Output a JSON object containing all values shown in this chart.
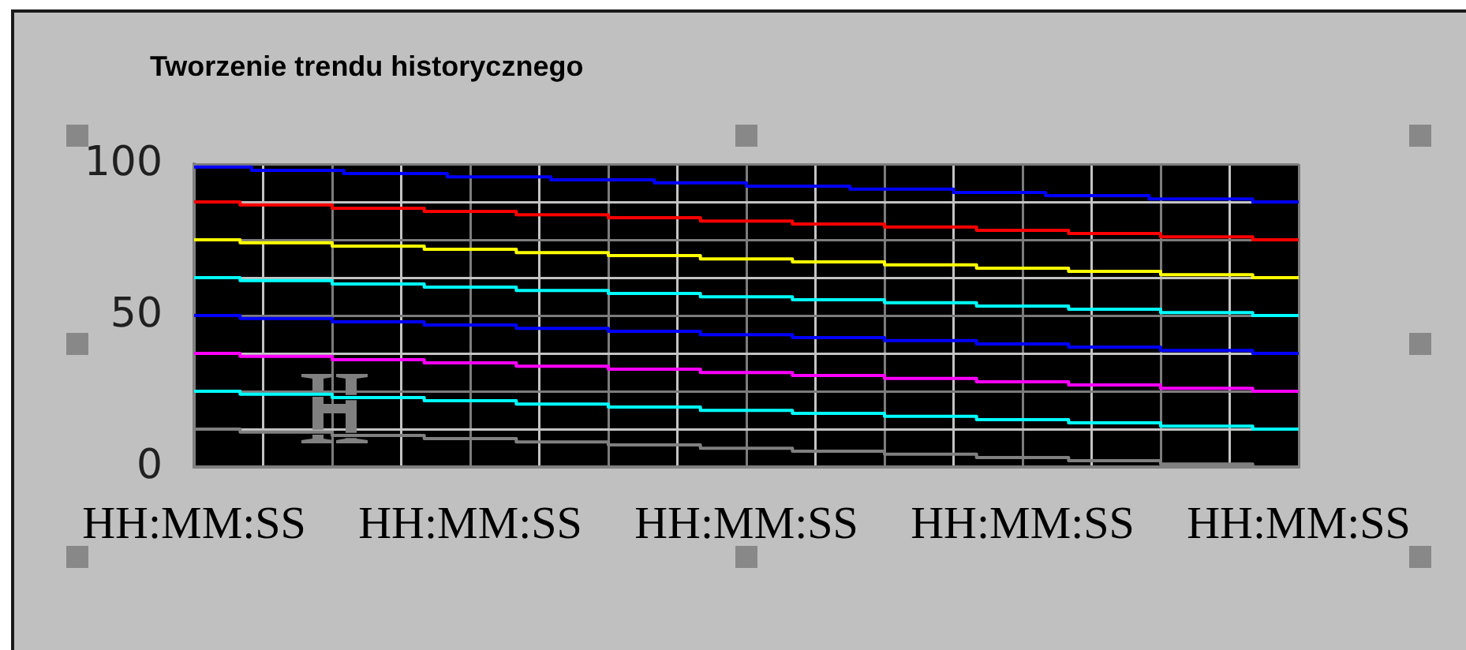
{
  "chart_data": {
    "type": "step",
    "title": "Tworzenie trendu historycznego",
    "categories": [
      "HH:MM:SS",
      null,
      null,
      null,
      null,
      null,
      null,
      null,
      null,
      null,
      null,
      null,
      null,
      null,
      null,
      null,
      null,
      null,
      null,
      null,
      null,
      null,
      null,
      null,
      "HH:MM:SS",
      null,
      null,
      null,
      null,
      null,
      null,
      null,
      null,
      null,
      null,
      null,
      null,
      null,
      null,
      null,
      null,
      null,
      null,
      null,
      null,
      null,
      null,
      null,
      "HH:MM:SS",
      null,
      null,
      null,
      null,
      null,
      null,
      null,
      null,
      null,
      null,
      null,
      null,
      null,
      null,
      null,
      null,
      null,
      null,
      null,
      null,
      null,
      null,
      null,
      "HH:MM:SS",
      null,
      null,
      null,
      null,
      null,
      null,
      null,
      null,
      null,
      null,
      null,
      null,
      null,
      null,
      null,
      null,
      null,
      null,
      null,
      null,
      null,
      null,
      null,
      "HH:MM:SS"
    ],
    "ylim": [
      0,
      100
    ],
    "yticks": [
      0,
      {
        "value": 12.5,
        "label": null
      },
      {
        "value": 25,
        "label": null
      },
      {
        "value": 37.5,
        "label": null
      },
      50,
      {
        "value": 62.5,
        "label": null
      },
      {
        "value": 75,
        "label": null
      },
      {
        "value": 87.5,
        "label": null
      },
      100
    ],
    "grid": true,
    "marker": "none",
    "line_style": "solid",
    "series": [
      {
        "color": "#0000ff",
        "values": [
          99,
          99,
          99,
          99,
          99,
          97.9,
          97.9,
          97.9,
          97.9,
          97.9,
          97.9,
          97.9,
          97.9,
          96.9,
          96.9,
          96.9,
          96.9,
          96.9,
          96.9,
          96.9,
          96.9,
          96.9,
          95.8,
          95.8,
          95.8,
          95.8,
          95.8,
          95.8,
          95.8,
          95.8,
          95.8,
          94.8,
          94.8,
          94.8,
          94.8,
          94.8,
          94.8,
          94.8,
          94.8,
          94.8,
          93.8,
          93.8,
          93.8,
          93.8,
          93.8,
          93.8,
          93.8,
          93.8,
          92.7,
          92.7,
          92.7,
          92.7,
          92.7,
          92.7,
          92.7,
          92.7,
          92.7,
          91.7,
          91.7,
          91.7,
          91.7,
          91.7,
          91.7,
          91.7,
          91.7,
          91.7,
          90.6,
          90.6,
          90.6,
          90.6,
          90.6,
          90.6,
          90.6,
          90.6,
          89.6,
          89.6,
          89.6,
          89.6,
          89.6,
          89.6,
          89.6,
          89.6,
          89.6,
          88.5,
          88.5,
          88.5,
          88.5,
          88.5,
          88.5,
          88.5,
          88.5,
          88.5,
          87.5,
          87.5,
          87.5,
          87.5,
          87.5
        ]
      },
      {
        "color": "#ff0000",
        "values": [
          87.5,
          87.5,
          87.5,
          87.5,
          86.5,
          86.5,
          86.5,
          86.5,
          86.5,
          86.5,
          86.5,
          86.5,
          85.4,
          85.4,
          85.4,
          85.4,
          85.4,
          85.4,
          85.4,
          85.4,
          84.4,
          84.4,
          84.4,
          84.4,
          84.4,
          84.4,
          84.4,
          84.4,
          83.3,
          83.3,
          83.3,
          83.3,
          83.3,
          83.3,
          83.3,
          83.3,
          82.3,
          82.3,
          82.3,
          82.3,
          82.3,
          82.3,
          82.3,
          82.3,
          81.2,
          81.2,
          81.2,
          81.2,
          81.2,
          81.2,
          81.2,
          81.2,
          80.2,
          80.2,
          80.2,
          80.2,
          80.2,
          80.2,
          80.2,
          80.2,
          79.2,
          79.2,
          79.2,
          79.2,
          79.2,
          79.2,
          79.2,
          79.2,
          78.1,
          78.1,
          78.1,
          78.1,
          78.1,
          78.1,
          78.1,
          78.1,
          77.1,
          77.1,
          77.1,
          77.1,
          77.1,
          77.1,
          77.1,
          77.1,
          76,
          76,
          76,
          76,
          76,
          76,
          76,
          76,
          75,
          75,
          75,
          75,
          75
        ]
      },
      {
        "color": "#ffff00",
        "values": [
          75,
          75,
          75,
          75,
          74,
          74,
          74,
          74,
          74,
          74,
          74,
          74,
          72.9,
          72.9,
          72.9,
          72.9,
          72.9,
          72.9,
          72.9,
          72.9,
          71.9,
          71.9,
          71.9,
          71.9,
          71.9,
          71.9,
          71.9,
          71.9,
          70.8,
          70.8,
          70.8,
          70.8,
          70.8,
          70.8,
          70.8,
          70.8,
          69.8,
          69.8,
          69.8,
          69.8,
          69.8,
          69.8,
          69.8,
          69.8,
          68.7,
          68.7,
          68.7,
          68.7,
          68.7,
          68.7,
          68.7,
          68.7,
          67.7,
          67.7,
          67.7,
          67.7,
          67.7,
          67.7,
          67.7,
          67.7,
          66.7,
          66.7,
          66.7,
          66.7,
          66.7,
          66.7,
          66.7,
          66.7,
          65.6,
          65.6,
          65.6,
          65.6,
          65.6,
          65.6,
          65.6,
          65.6,
          64.6,
          64.6,
          64.6,
          64.6,
          64.6,
          64.6,
          64.6,
          64.6,
          63.5,
          63.5,
          63.5,
          63.5,
          63.5,
          63.5,
          63.5,
          63.5,
          62.5,
          62.5,
          62.5,
          62.5,
          62.5
        ]
      },
      {
        "color": "#00ffff",
        "values": [
          62.5,
          62.5,
          62.5,
          62.5,
          61.5,
          61.5,
          61.5,
          61.5,
          61.5,
          61.5,
          61.5,
          61.5,
          60.4,
          60.4,
          60.4,
          60.4,
          60.4,
          60.4,
          60.4,
          60.4,
          59.4,
          59.4,
          59.4,
          59.4,
          59.4,
          59.4,
          59.4,
          59.4,
          58.3,
          58.3,
          58.3,
          58.3,
          58.3,
          58.3,
          58.3,
          58.3,
          57.3,
          57.3,
          57.3,
          57.3,
          57.3,
          57.3,
          57.3,
          57.3,
          56.2,
          56.2,
          56.2,
          56.2,
          56.2,
          56.2,
          56.2,
          56.2,
          55.2,
          55.2,
          55.2,
          55.2,
          55.2,
          55.2,
          55.2,
          55.2,
          54.2,
          54.2,
          54.2,
          54.2,
          54.2,
          54.2,
          54.2,
          54.2,
          53.1,
          53.1,
          53.1,
          53.1,
          53.1,
          53.1,
          53.1,
          53.1,
          52.1,
          52.1,
          52.1,
          52.1,
          52.1,
          52.1,
          52.1,
          52.1,
          51,
          51,
          51,
          51,
          51,
          51,
          51,
          51,
          50,
          50,
          50,
          50,
          50
        ]
      },
      {
        "color": "#0000ff",
        "values": [
          50,
          50,
          50,
          50,
          49,
          49,
          49,
          49,
          49,
          49,
          49,
          49,
          47.9,
          47.9,
          47.9,
          47.9,
          47.9,
          47.9,
          47.9,
          47.9,
          46.9,
          46.9,
          46.9,
          46.9,
          46.9,
          46.9,
          46.9,
          46.9,
          45.8,
          45.8,
          45.8,
          45.8,
          45.8,
          45.8,
          45.8,
          45.8,
          44.8,
          44.8,
          44.8,
          44.8,
          44.8,
          44.8,
          44.8,
          44.8,
          43.7,
          43.7,
          43.7,
          43.7,
          43.7,
          43.7,
          43.7,
          43.7,
          42.7,
          42.7,
          42.7,
          42.7,
          42.7,
          42.7,
          42.7,
          42.7,
          41.7,
          41.7,
          41.7,
          41.7,
          41.7,
          41.7,
          41.7,
          41.7,
          40.6,
          40.6,
          40.6,
          40.6,
          40.6,
          40.6,
          40.6,
          40.6,
          39.6,
          39.6,
          39.6,
          39.6,
          39.6,
          39.6,
          39.6,
          39.6,
          38.5,
          38.5,
          38.5,
          38.5,
          38.5,
          38.5,
          38.5,
          38.5,
          37.5,
          37.5,
          37.5,
          37.5,
          37.5
        ]
      },
      {
        "color": "#ff00ff",
        "values": [
          37.5,
          37.5,
          37.5,
          37.5,
          36.5,
          36.5,
          36.5,
          36.5,
          36.5,
          36.5,
          36.5,
          36.5,
          35.4,
          35.4,
          35.4,
          35.4,
          35.4,
          35.4,
          35.4,
          35.4,
          34.4,
          34.4,
          34.4,
          34.4,
          34.4,
          34.4,
          34.4,
          34.4,
          33.3,
          33.3,
          33.3,
          33.3,
          33.3,
          33.3,
          33.3,
          33.3,
          32.3,
          32.3,
          32.3,
          32.3,
          32.3,
          32.3,
          32.3,
          32.3,
          31.2,
          31.2,
          31.2,
          31.2,
          31.2,
          31.2,
          31.2,
          31.2,
          30.2,
          30.2,
          30.2,
          30.2,
          30.2,
          30.2,
          30.2,
          30.2,
          29.2,
          29.2,
          29.2,
          29.2,
          29.2,
          29.2,
          29.2,
          29.2,
          28.1,
          28.1,
          28.1,
          28.1,
          28.1,
          28.1,
          28.1,
          28.1,
          27.1,
          27.1,
          27.1,
          27.1,
          27.1,
          27.1,
          27.1,
          27.1,
          26,
          26,
          26,
          26,
          26,
          26,
          26,
          26,
          25,
          25,
          25,
          25,
          25
        ]
      },
      {
        "color": "#00ffff",
        "values": [
          25,
          25,
          25,
          25,
          24,
          24,
          24,
          24,
          24,
          24,
          24,
          24,
          22.9,
          22.9,
          22.9,
          22.9,
          22.9,
          22.9,
          22.9,
          22.9,
          21.9,
          21.9,
          21.9,
          21.9,
          21.9,
          21.9,
          21.9,
          21.9,
          20.8,
          20.8,
          20.8,
          20.8,
          20.8,
          20.8,
          20.8,
          20.8,
          19.8,
          19.8,
          19.8,
          19.8,
          19.8,
          19.8,
          19.8,
          19.8,
          18.7,
          18.7,
          18.7,
          18.7,
          18.7,
          18.7,
          18.7,
          18.7,
          17.7,
          17.7,
          17.7,
          17.7,
          17.7,
          17.7,
          17.7,
          17.7,
          16.7,
          16.7,
          16.7,
          16.7,
          16.7,
          16.7,
          16.7,
          16.7,
          15.6,
          15.6,
          15.6,
          15.6,
          15.6,
          15.6,
          15.6,
          15.6,
          14.6,
          14.6,
          14.6,
          14.6,
          14.6,
          14.6,
          14.6,
          14.6,
          13.5,
          13.5,
          13.5,
          13.5,
          13.5,
          13.5,
          13.5,
          13.5,
          12.5,
          12.5,
          12.5,
          12.5,
          12.5
        ]
      },
      {
        "color": "#808080",
        "values": [
          12.5,
          12.5,
          12.5,
          12.5,
          11.5,
          11.5,
          11.5,
          11.5,
          11.5,
          11.5,
          11.5,
          11.5,
          10.4,
          10.4,
          10.4,
          10.4,
          10.4,
          10.4,
          10.4,
          10.4,
          9.4,
          9.4,
          9.4,
          9.4,
          9.4,
          9.4,
          9.4,
          9.4,
          8.3,
          8.3,
          8.3,
          8.3,
          8.3,
          8.3,
          8.3,
          8.3,
          7.3,
          7.3,
          7.3,
          7.3,
          7.3,
          7.3,
          7.3,
          7.3,
          6.2,
          6.2,
          6.2,
          6.2,
          6.2,
          6.2,
          6.2,
          6.2,
          5.2,
          5.2,
          5.2,
          5.2,
          5.2,
          5.2,
          5.2,
          5.2,
          4.2,
          4.2,
          4.2,
          4.2,
          4.2,
          4.2,
          4.2,
          4.2,
          3.1,
          3.1,
          3.1,
          3.1,
          3.1,
          3.1,
          3.1,
          3.1,
          2.1,
          2.1,
          2.1,
          2.1,
          2.1,
          2.1,
          2.1,
          2.1,
          1,
          1,
          1,
          1,
          1,
          1,
          1,
          1,
          0,
          0,
          0,
          0,
          0
        ]
      }
    ]
  }
}
